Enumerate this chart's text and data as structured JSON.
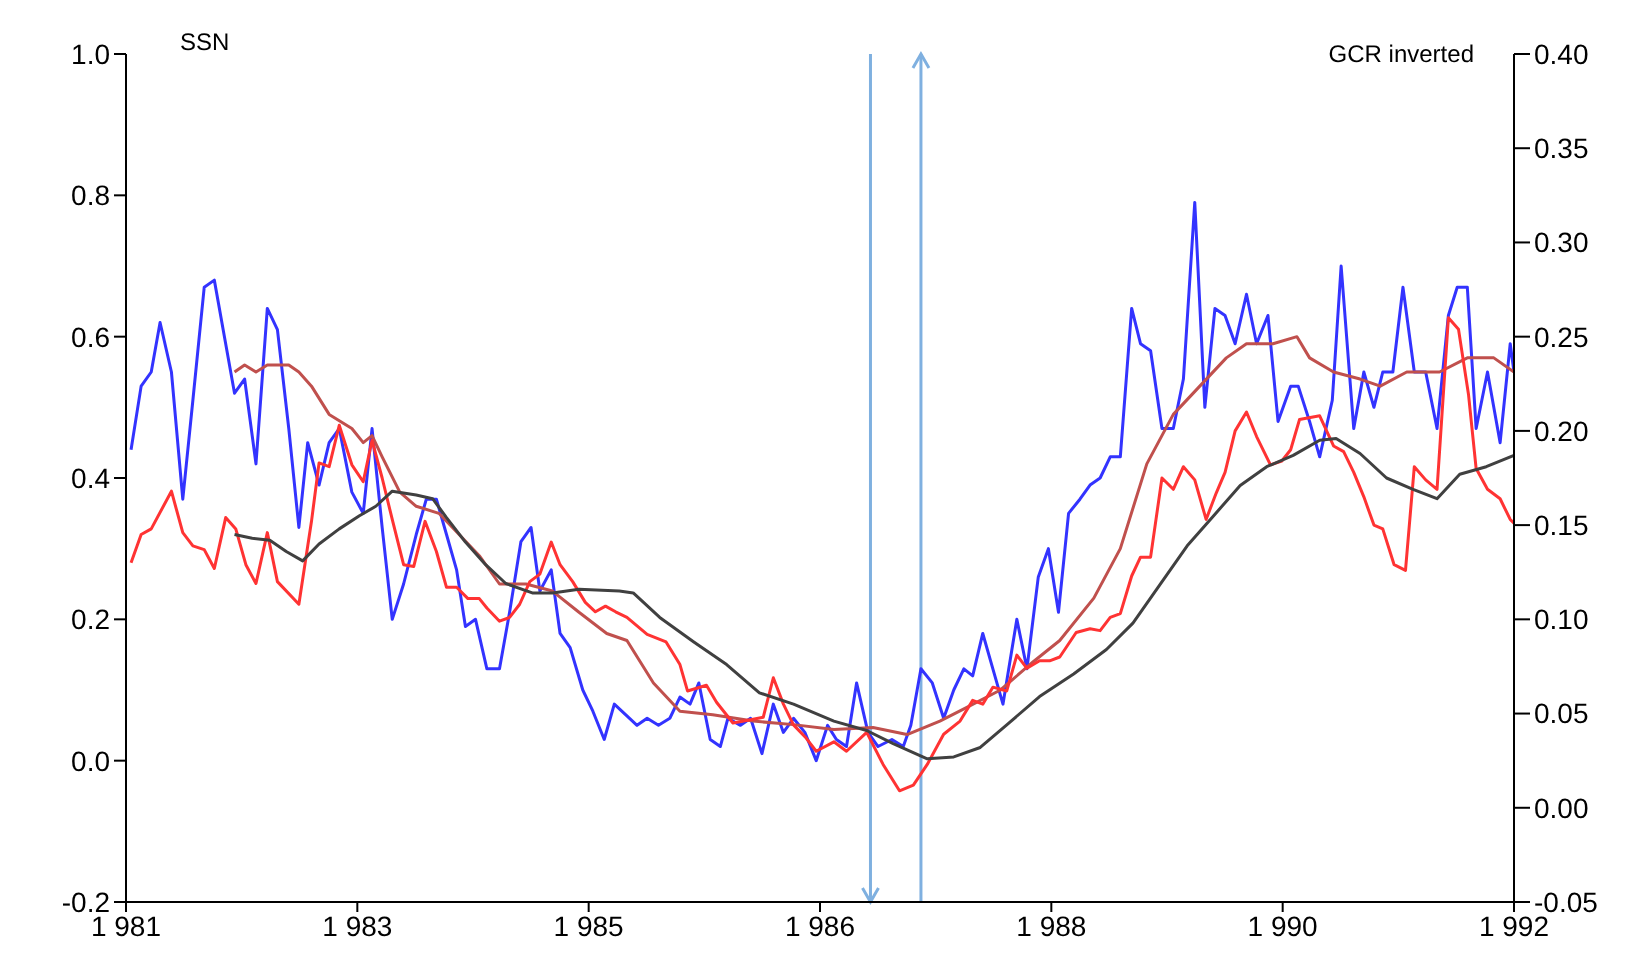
{
  "chart_data": {
    "type": "line",
    "ylabel": "SSN",
    "y2label": "GCR inverted",
    "xlim": [
      1981,
      1992
    ],
    "xticks": [
      {
        "value": 1981,
        "label": "1 981"
      },
      {
        "value": 1982.8333,
        "label": "1 983"
      },
      {
        "value": 1984.6667,
        "label": "1 985"
      },
      {
        "value": 1986.5,
        "label": "1 986"
      },
      {
        "value": 1988.3333,
        "label": "1 988"
      },
      {
        "value": 1990.1667,
        "label": "1 990"
      },
      {
        "value": 1992,
        "label": "1 992"
      }
    ],
    "ylim": [
      -0.2,
      1.0
    ],
    "yticks": [
      {
        "value": -0.2,
        "label": "-0.2"
      },
      {
        "value": 0,
        "label": "0.0"
      },
      {
        "value": 0.2,
        "label": "0.2"
      },
      {
        "value": 0.4,
        "label": "0.4"
      },
      {
        "value": 0.6,
        "label": "0.6"
      },
      {
        "value": 0.8,
        "label": "0.8"
      },
      {
        "value": 1,
        "label": "1.0"
      }
    ],
    "y2lim": [
      -0.05,
      0.4
    ],
    "y2ticks": [
      {
        "value": -0.05,
        "label": "-0.05"
      },
      {
        "value": 0,
        "label": "0.00"
      },
      {
        "value": 0.05,
        "label": "0.05"
      },
      {
        "value": 0.1,
        "label": "0.10"
      },
      {
        "value": 0.15,
        "label": "0.15"
      },
      {
        "value": 0.2,
        "label": "0.20"
      },
      {
        "value": 0.25,
        "label": "0.25"
      },
      {
        "value": 0.3,
        "label": "0.30"
      },
      {
        "value": 0.35,
        "label": "0.35"
      },
      {
        "value": 0.4,
        "label": "0.40"
      }
    ],
    "marker": "none",
    "series": [
      {
        "color": "#3333ff",
        "axis": "y",
        "x": [
          1981.04,
          1981.12,
          1981.2,
          1981.27,
          1981.36,
          1981.45,
          1981.53,
          1981.62,
          1981.7,
          1981.78,
          1981.86,
          1981.94,
          1982.03,
          1982.12,
          1982.2,
          1982.29,
          1982.37,
          1982.44,
          1982.53,
          1982.61,
          1982.69,
          1982.79,
          1982.88,
          1982.95,
          1983.03,
          1983.11,
          1983.2,
          1983.3,
          1983.38,
          1983.46,
          1983.54,
          1983.62,
          1983.69,
          1983.77,
          1983.86,
          1983.96,
          1984.04,
          1984.13,
          1984.21,
          1984.28,
          1984.37,
          1984.44,
          1984.52,
          1984.62,
          1984.7,
          1984.79,
          1984.87,
          1985.05,
          1985.13,
          1985.22,
          1985.31,
          1985.39,
          1985.47,
          1985.54,
          1985.63,
          1985.71,
          1985.77,
          1985.87,
          1985.95,
          1986.04,
          1986.13,
          1986.21,
          1986.29,
          1986.38,
          1986.47,
          1986.56,
          1986.63,
          1986.71,
          1986.79,
          1986.88,
          1986.96,
          1987.07,
          1987.16,
          1987.22,
          1987.3,
          1987.39,
          1987.48,
          1987.56,
          1987.64,
          1987.71,
          1987.79,
          1987.87,
          1987.95,
          1988.06,
          1988.14,
          1988.23,
          1988.31,
          1988.39,
          1988.47,
          1988.56,
          1988.64,
          1988.72,
          1988.8,
          1988.88,
          1988.97,
          1989.04,
          1989.12,
          1989.21,
          1989.3,
          1989.38,
          1989.47,
          1989.55,
          1989.63,
          1989.71,
          1989.79,
          1989.88,
          1989.96,
          1990.05,
          1990.13,
          1990.23,
          1990.29,
          1990.38,
          1990.46,
          1990.56,
          1990.63,
          1990.73,
          1990.81,
          1990.89,
          1990.96,
          1991.04,
          1991.12,
          1991.21,
          1991.3,
          1991.39,
          1991.48,
          1991.55,
          1991.63,
          1991.7,
          1991.79,
          1991.89,
          1991.97,
          1992.0
        ],
        "values": [
          0.44,
          0.53,
          0.55,
          0.62,
          0.55,
          0.37,
          0.51,
          0.67,
          0.68,
          0.6,
          0.52,
          0.54,
          0.42,
          0.64,
          0.61,
          0.47,
          0.33,
          0.45,
          0.39,
          0.45,
          0.47,
          0.38,
          0.35,
          0.47,
          0.33,
          0.2,
          0.25,
          0.32,
          0.37,
          0.37,
          0.32,
          0.27,
          0.19,
          0.2,
          0.13,
          0.13,
          0.21,
          0.31,
          0.33,
          0.24,
          0.27,
          0.18,
          0.16,
          0.1,
          0.07,
          0.03,
          0.08,
          0.05,
          0.06,
          0.05,
          0.06,
          0.09,
          0.08,
          0.11,
          0.03,
          0.02,
          0.06,
          0.05,
          0.06,
          0.01,
          0.08,
          0.04,
          0.06,
          0.04,
          0.0,
          0.05,
          0.03,
          0.02,
          0.11,
          0.04,
          0.02,
          0.03,
          0.02,
          0.05,
          0.13,
          0.11,
          0.06,
          0.1,
          0.13,
          0.12,
          0.18,
          0.13,
          0.08,
          0.2,
          0.13,
          0.26,
          0.3,
          0.21,
          0.35,
          0.37,
          0.39,
          0.4,
          0.43,
          0.43,
          0.64,
          0.59,
          0.58,
          0.47,
          0.47,
          0.54,
          0.79,
          0.5,
          0.64,
          0.63,
          0.59,
          0.66,
          0.59,
          0.63,
          0.48,
          0.53,
          0.53,
          0.48,
          0.43,
          0.51,
          0.7,
          0.47,
          0.55,
          0.5,
          0.55,
          0.55,
          0.67,
          0.55,
          0.55,
          0.47,
          0.63,
          0.67,
          0.67,
          0.47,
          0.55,
          0.45,
          0.59,
          0.55
        ]
      },
      {
        "color": "#c0504d",
        "axis": "y",
        "x": [
          1981.86,
          1981.94,
          1982.03,
          1982.12,
          1982.29,
          1982.37,
          1982.47,
          1982.61,
          1982.79,
          1982.88,
          1982.95,
          1983.03,
          1983.17,
          1983.3,
          1983.48,
          1983.64,
          1983.8,
          1983.96,
          1984.17,
          1984.38,
          1984.59,
          1984.81,
          1984.97,
          1985.18,
          1985.39,
          1985.65,
          1985.97,
          1986.29,
          1986.61,
          1986.92,
          1987.19,
          1987.45,
          1987.66,
          1987.93,
          1988.19,
          1988.4,
          1988.67,
          1988.88,
          1989.09,
          1989.3,
          1989.51,
          1989.72,
          1989.88,
          1990.09,
          1990.28,
          1990.38,
          1990.57,
          1990.78,
          1990.94,
          1991.15,
          1991.41,
          1991.63,
          1991.84,
          1992.0
        ],
        "values": [
          0.55,
          0.56,
          0.55,
          0.56,
          0.56,
          0.55,
          0.53,
          0.49,
          0.47,
          0.45,
          0.46,
          0.43,
          0.38,
          0.36,
          0.35,
          0.32,
          0.29,
          0.25,
          0.25,
          0.24,
          0.21,
          0.18,
          0.17,
          0.11,
          0.07,
          0.065,
          0.056,
          0.051,
          0.044,
          0.047,
          0.037,
          0.056,
          0.075,
          0.1,
          0.14,
          0.17,
          0.23,
          0.3,
          0.42,
          0.49,
          0.53,
          0.57,
          0.59,
          0.59,
          0.6,
          0.57,
          0.55,
          0.54,
          0.53,
          0.55,
          0.55,
          0.57,
          0.57,
          0.55
        ]
      },
      {
        "color": "#ff3333",
        "axis": "y2",
        "x": [
          1981.04,
          1981.12,
          1981.2,
          1981.36,
          1981.45,
          1981.53,
          1981.62,
          1981.7,
          1981.79,
          1981.87,
          1981.95,
          1982.03,
          1982.12,
          1982.2,
          1982.37,
          1982.47,
          1982.53,
          1982.61,
          1982.69,
          1982.79,
          1982.88,
          1982.95,
          1983.03,
          1983.11,
          1983.2,
          1983.28,
          1983.37,
          1983.46,
          1983.54,
          1983.62,
          1983.71,
          1983.8,
          1983.86,
          1983.96,
          1984.04,
          1984.12,
          1984.2,
          1984.28,
          1984.37,
          1984.44,
          1984.54,
          1984.64,
          1984.72,
          1984.8,
          1984.88,
          1984.97,
          1985.13,
          1985.28,
          1985.39,
          1985.45,
          1985.6,
          1985.68,
          1985.81,
          1985.97,
          1986.05,
          1986.13,
          1986.21,
          1986.29,
          1986.39,
          1986.47,
          1986.61,
          1986.71,
          1986.87,
          1987.0,
          1987.13,
          1987.24,
          1987.35,
          1987.48,
          1987.61,
          1987.71,
          1987.79,
          1987.87,
          1987.98,
          1988.06,
          1988.14,
          1988.24,
          1988.32,
          1988.4,
          1988.53,
          1988.64,
          1988.72,
          1988.8,
          1988.88,
          1988.97,
          1989.04,
          1989.12,
          1989.21,
          1989.3,
          1989.38,
          1989.47,
          1989.56,
          1989.64,
          1989.71,
          1989.79,
          1989.88,
          1989.96,
          1990.07,
          1990.16,
          1990.23,
          1990.3,
          1990.46,
          1990.57,
          1990.65,
          1990.73,
          1990.81,
          1990.89,
          1990.96,
          1991.05,
          1991.14,
          1991.21,
          1991.3,
          1991.39,
          1991.48,
          1991.56,
          1991.64,
          1991.7,
          1991.79,
          1991.89,
          1991.97,
          1992.0
        ],
        "values": [
          0.13,
          0.145,
          0.148,
          0.168,
          0.146,
          0.139,
          0.137,
          0.127,
          0.154,
          0.148,
          0.129,
          0.119,
          0.146,
          0.12,
          0.108,
          0.152,
          0.183,
          0.181,
          0.203,
          0.182,
          0.173,
          0.195,
          0.175,
          0.153,
          0.129,
          0.128,
          0.152,
          0.136,
          0.117,
          0.117,
          0.111,
          0.111,
          0.106,
          0.099,
          0.101,
          0.108,
          0.12,
          0.124,
          0.141,
          0.129,
          0.12,
          0.109,
          0.104,
          0.107,
          0.104,
          0.101,
          0.092,
          0.088,
          0.076,
          0.062,
          0.065,
          0.056,
          0.045,
          0.047,
          0.048,
          0.069,
          0.055,
          0.044,
          0.037,
          0.03,
          0.035,
          0.03,
          0.04,
          0.023,
          0.009,
          0.012,
          0.023,
          0.039,
          0.046,
          0.057,
          0.055,
          0.064,
          0.062,
          0.081,
          0.074,
          0.078,
          0.078,
          0.08,
          0.093,
          0.095,
          0.094,
          0.101,
          0.103,
          0.123,
          0.133,
          0.133,
          0.175,
          0.169,
          0.181,
          0.174,
          0.153,
          0.167,
          0.178,
          0.2,
          0.21,
          0.197,
          0.182,
          0.184,
          0.19,
          0.206,
          0.208,
          0.192,
          0.189,
          0.178,
          0.165,
          0.15,
          0.148,
          0.129,
          0.126,
          0.181,
          0.174,
          0.169,
          0.26,
          0.254,
          0.219,
          0.18,
          0.169,
          0.164,
          0.153,
          0.151
        ]
      },
      {
        "color": "#404040",
        "axis": "y2",
        "x": [
          1981.86,
          1982.0,
          1982.14,
          1982.27,
          1982.4,
          1982.53,
          1982.69,
          1982.85,
          1982.98,
          1983.11,
          1983.3,
          1983.43,
          1983.54,
          1983.69,
          1983.85,
          1984.01,
          1984.22,
          1984.38,
          1984.59,
          1984.91,
          1985.02,
          1985.23,
          1985.5,
          1985.76,
          1986.02,
          1986.29,
          1986.61,
          1986.87,
          1987.08,
          1987.35,
          1987.56,
          1987.77,
          1987.98,
          1988.24,
          1988.51,
          1988.77,
          1988.98,
          1989.19,
          1989.41,
          1989.62,
          1989.83,
          1990.04,
          1990.25,
          1990.46,
          1990.59,
          1990.78,
          1990.99,
          1991.2,
          1991.39,
          1991.57,
          1991.78,
          1992.0
        ],
        "values": [
          0.145,
          0.143,
          0.142,
          0.136,
          0.131,
          0.14,
          0.148,
          0.155,
          0.16,
          0.168,
          0.166,
          0.164,
          0.154,
          0.141,
          0.129,
          0.119,
          0.114,
          0.114,
          0.116,
          0.115,
          0.114,
          0.101,
          0.088,
          0.076,
          0.061,
          0.055,
          0.046,
          0.041,
          0.034,
          0.026,
          0.027,
          0.032,
          0.044,
          0.059,
          0.071,
          0.084,
          0.098,
          0.118,
          0.139,
          0.155,
          0.171,
          0.181,
          0.187,
          0.195,
          0.196,
          0.188,
          0.175,
          0.169,
          0.164,
          0.177,
          0.181,
          0.187
        ]
      }
    ],
    "ref_lines": [
      {
        "axis": "x",
        "value": 1986.9,
        "color": "#7fb0e0"
      },
      {
        "axis": "x",
        "value": 1987.3,
        "color": "#7fb0e0"
      }
    ]
  }
}
